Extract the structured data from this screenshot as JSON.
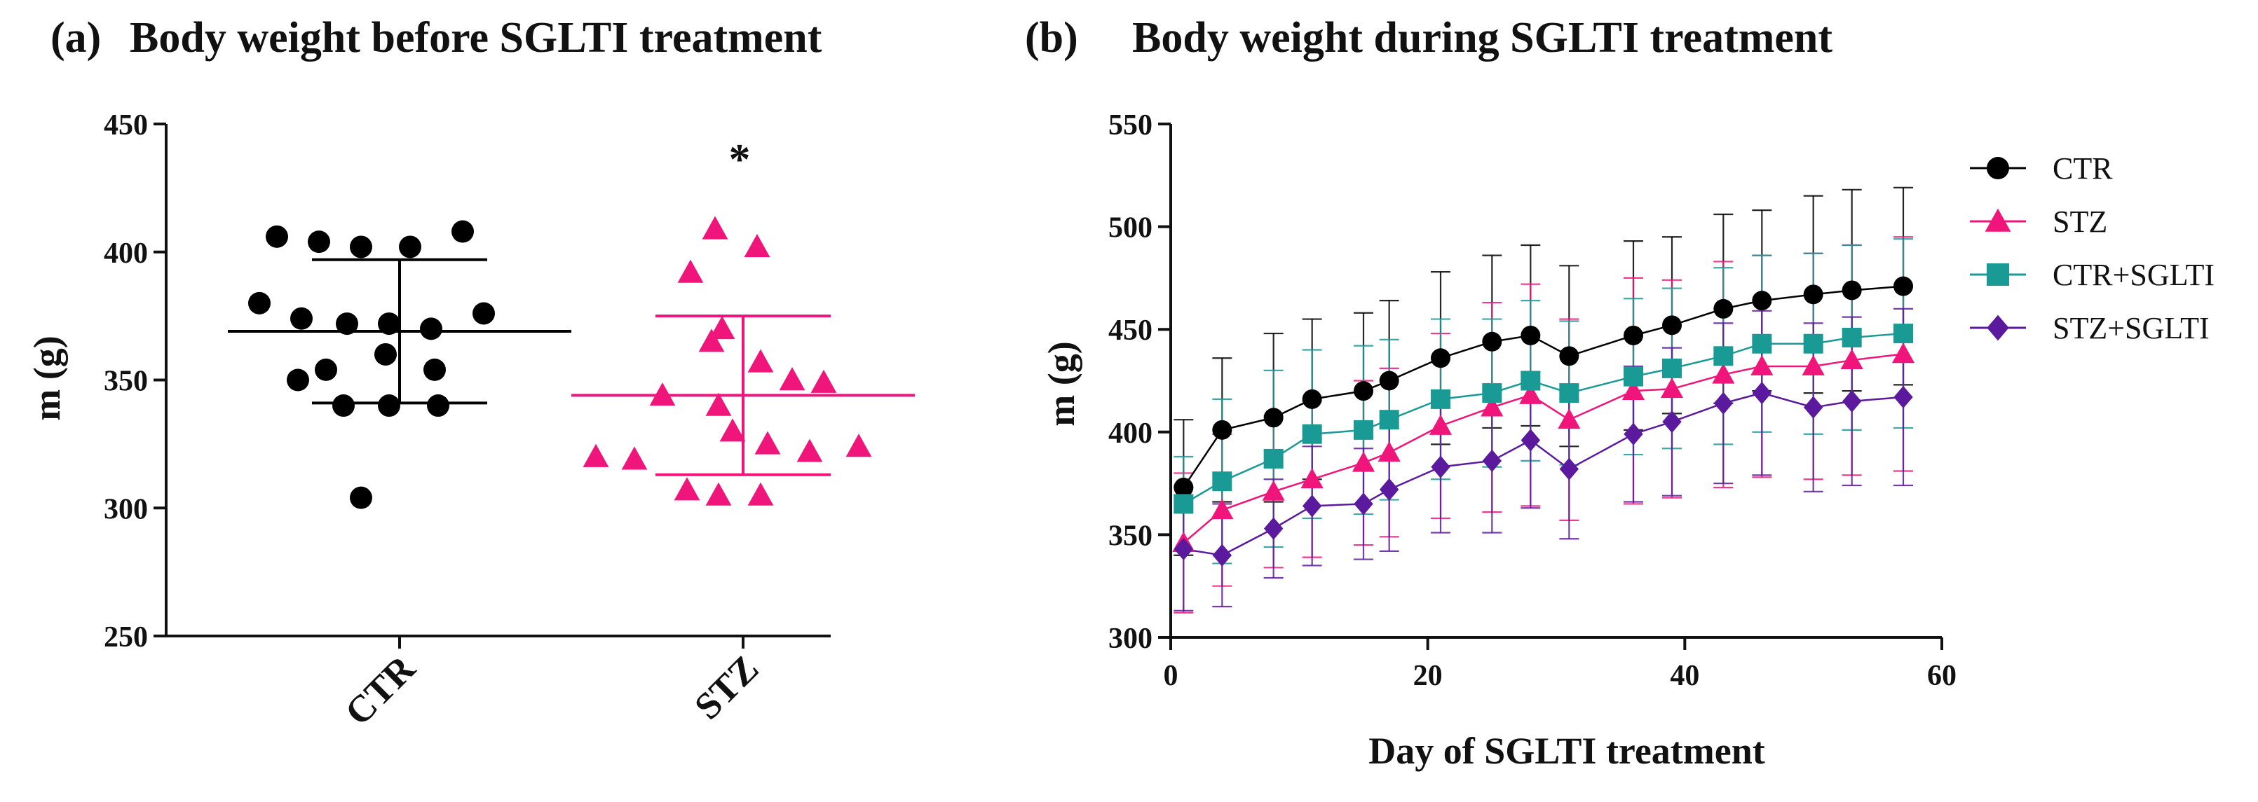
{
  "chart_data": [
    {
      "type": "scatter",
      "panel_label": "(a)",
      "title": "Body weight before SGLTI treatment",
      "ylabel": "m (g)",
      "xlabel": "",
      "ylim": [
        250,
        450
      ],
      "yticks": [
        250,
        300,
        350,
        400,
        450
      ],
      "categories": [
        "CTR",
        "STZ"
      ],
      "annotation": "*",
      "series": [
        {
          "name": "CTR",
          "color": "#000000",
          "marker": "circle",
          "values": [
            406,
            404,
            402,
            402,
            408,
            380,
            374,
            372,
            372,
            370,
            376,
            360,
            354,
            350,
            354,
            340,
            340,
            340,
            304
          ],
          "mean": 369,
          "sd_low": 341,
          "sd_high": 397
        },
        {
          "name": "STZ",
          "color": "#f0157a",
          "marker": "triangle",
          "values": [
            409,
            402,
            392,
            370,
            365,
            357,
            350,
            344,
            340,
            349,
            330,
            325,
            322,
            320,
            319,
            307,
            305,
            305,
            324
          ],
          "mean": 344,
          "sd_low": 313,
          "sd_high": 375
        }
      ]
    },
    {
      "type": "line",
      "panel_label": "(b)",
      "title": "Body weight during SGLTI treatment",
      "xlabel": "Day of SGLTI treatment",
      "ylabel": "m (g)",
      "xlim": [
        0,
        60
      ],
      "ylim": [
        300,
        550
      ],
      "xticks": [
        0,
        20,
        40,
        60
      ],
      "yticks": [
        300,
        350,
        400,
        450,
        500,
        550
      ],
      "legend_position": "right",
      "x": [
        1,
        4,
        8,
        11,
        15,
        17,
        21,
        25,
        28,
        31,
        36,
        39,
        43,
        46,
        50,
        53,
        57
      ],
      "series": [
        {
          "name": "CTR",
          "color": "#000000",
          "marker": "circle",
          "values": [
            373,
            401,
            407,
            416,
            420,
            425,
            436,
            444,
            447,
            437,
            447,
            452,
            460,
            464,
            467,
            469,
            471
          ],
          "err": [
            33,
            35,
            41,
            39,
            38,
            39,
            42,
            42,
            44,
            44,
            46,
            43,
            46,
            44,
            48,
            49,
            48
          ]
        },
        {
          "name": "STZ",
          "color": "#f0157a",
          "marker": "triangle",
          "values": [
            346,
            362,
            371,
            377,
            385,
            390,
            403,
            412,
            418,
            406,
            420,
            421,
            428,
            432,
            432,
            435,
            438
          ],
          "err": [
            34,
            37,
            37,
            38,
            40,
            41,
            45,
            51,
            54,
            49,
            55,
            53,
            55,
            54,
            55,
            56,
            57
          ]
        },
        {
          "name": "CTR+SGLTI",
          "color": "#1a9a95",
          "marker": "square",
          "values": [
            365,
            376,
            387,
            399,
            401,
            406,
            416,
            419,
            425,
            419,
            427,
            431,
            437,
            443,
            443,
            446,
            448
          ],
          "err": [
            23,
            40,
            43,
            41,
            41,
            39,
            39,
            36,
            39,
            35,
            38,
            39,
            43,
            43,
            44,
            45,
            46
          ]
        },
        {
          "name": "STZ+SGLTI",
          "color": "#5b1a9e",
          "marker": "diamond",
          "values": [
            343,
            340,
            353,
            364,
            365,
            372,
            383,
            386,
            396,
            382,
            399,
            405,
            414,
            419,
            412,
            415,
            417
          ],
          "err": [
            30,
            25,
            24,
            29,
            27,
            30,
            32,
            35,
            33,
            34,
            33,
            36,
            39,
            40,
            41,
            41,
            43
          ]
        }
      ]
    }
  ]
}
